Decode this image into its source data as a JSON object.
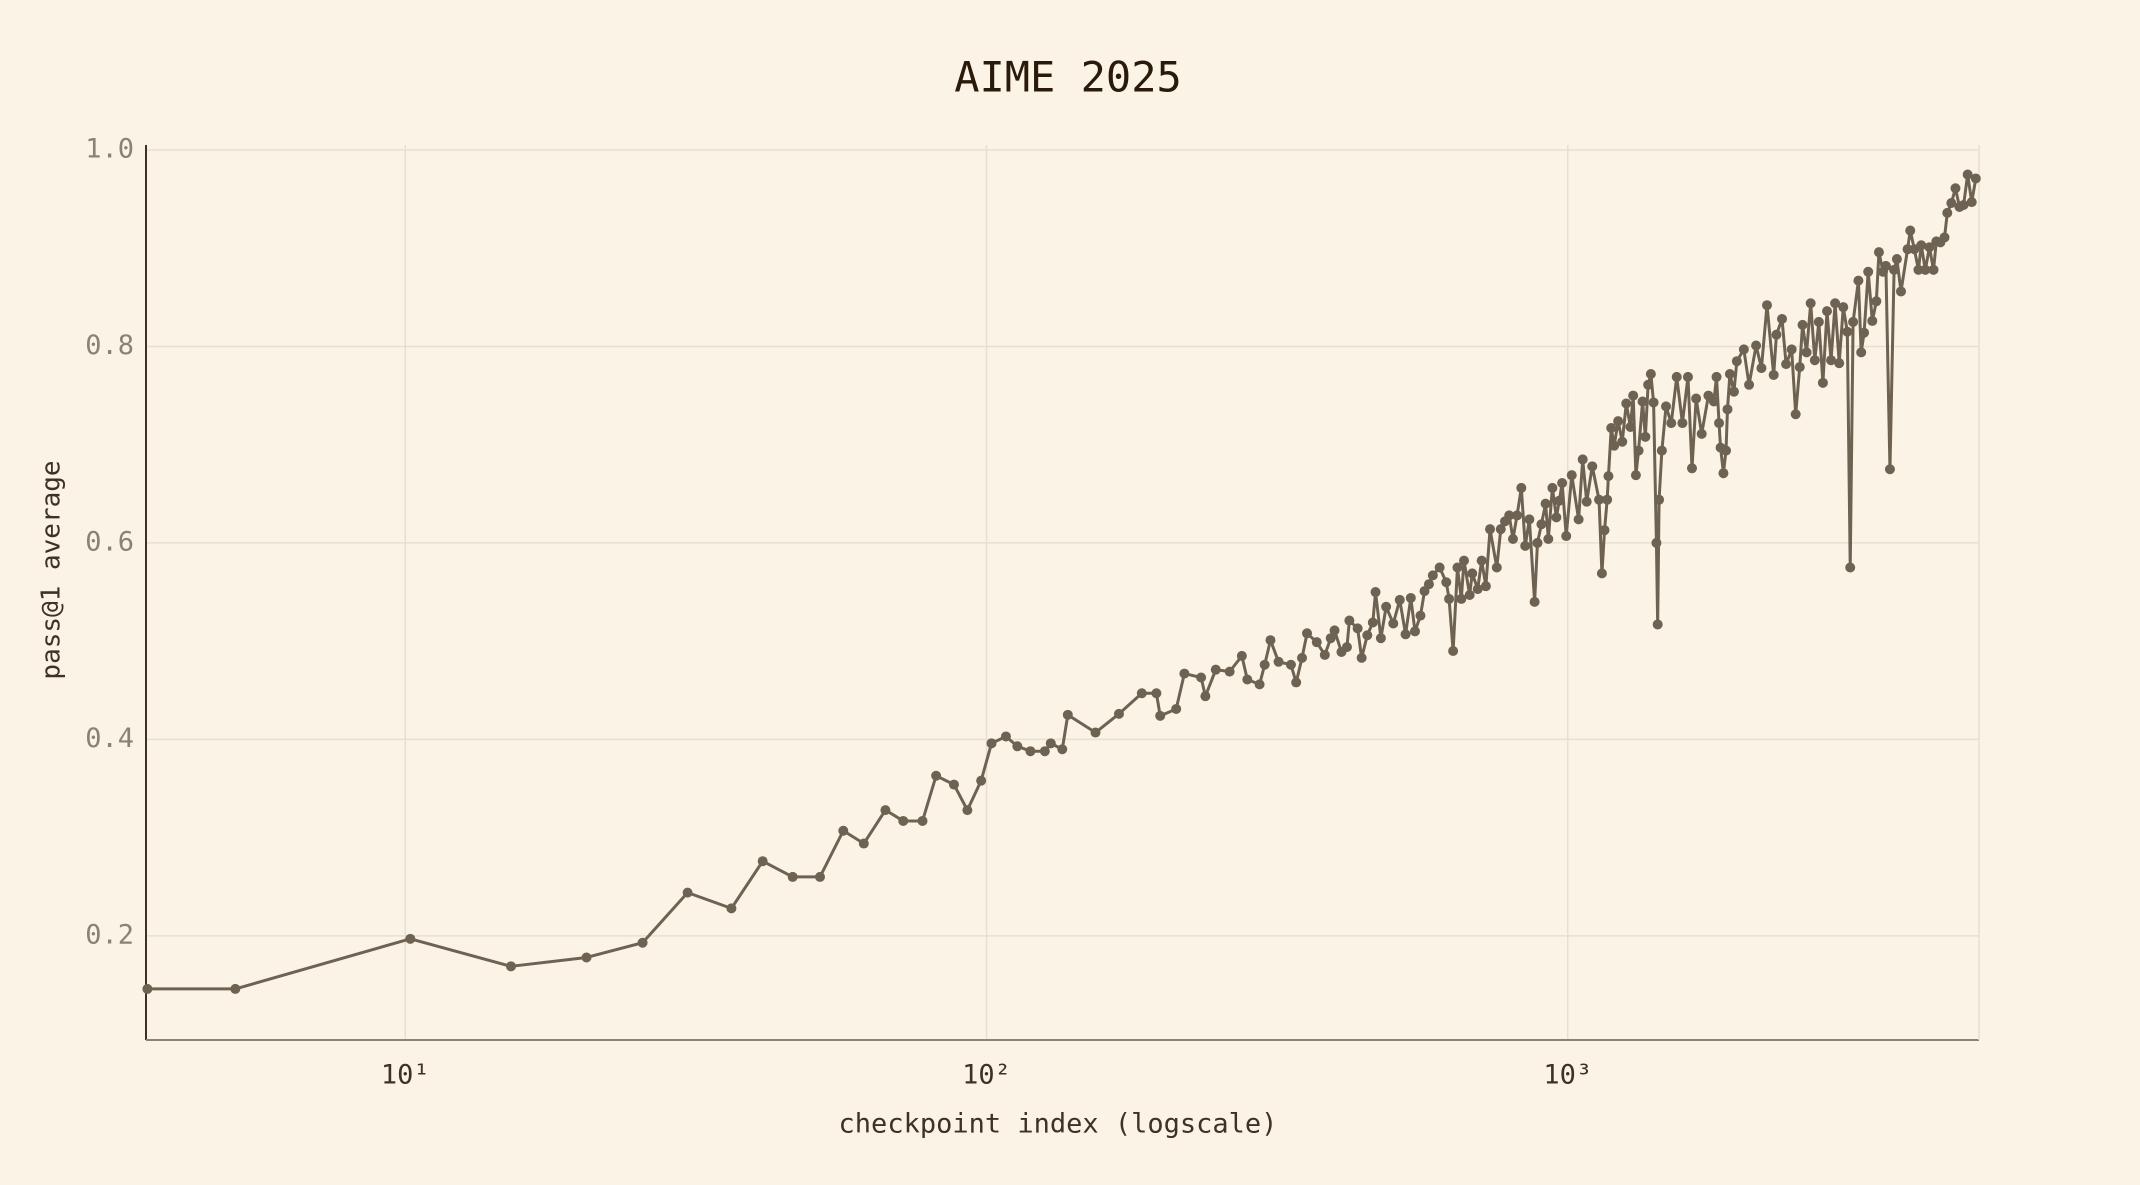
{
  "chart_data": {
    "type": "line",
    "title": "AIME 2025",
    "x_label": "checkpoint index (logscale)",
    "y_label": "pass@1 average",
    "xscale": "log",
    "grid": true,
    "color": "#6e6353",
    "xlim": [
      3.58,
      5100
    ],
    "ylim": [
      0.094,
      1.0
    ],
    "xticks": [
      {
        "value": 10,
        "label": "10¹"
      },
      {
        "value": 100,
        "label": "10²"
      },
      {
        "value": 1000,
        "label": "10³"
      }
    ],
    "yticks": [
      0.2,
      0.4,
      0.6,
      0.8,
      {
        "value": 1,
        "label": "1.0"
      }
    ],
    "x": [
      3.6,
      5.1,
      10.2,
      15.2,
      20.5,
      25.6,
      30.6,
      36.4,
      41.2,
      46.4,
      51.7,
      56.7,
      61.5,
      67,
      71.9,
      77.6,
      81.9,
      87.9,
      92.7,
      97.9,
      102,
      108,
      113,
      119,
      126,
      129,
      135,
      138,
      154,
      169,
      185,
      196,
      199,
      212,
      219,
      234,
      238,
      248,
      262,
      275,
      281,
      295,
      301,
      308,
      318,
      334,
      341,
      349,
      356,
      370,
      382,
      391,
      397,
      408,
      417,
      421,
      435,
      442,
      452,
      462,
      467,
      477,
      487,
      501,
      514,
      526,
      537,
      546,
      558,
      567,
      577,
      586,
      602,
      618,
      625,
      635,
      646,
      656,
      663,
      678,
      685,
      700,
      711,
      723,
      735,
      755,
      767,
      780,
      793,
      805,
      818,
      832,
      845,
      859,
      877,
      887,
      901,
      916,
      926,
      941,
      956,
      967,
      978,
      994,
      1016,
      1044,
      1061,
      1078,
      1102,
      1132,
      1145,
      1157,
      1169,
      1175,
      1188,
      1202,
      1221,
      1241,
      1261,
      1282,
      1296,
      1310,
      1324,
      1345,
      1360,
      1375,
      1390,
      1405,
      1421,
      1428,
      1436,
      1452,
      1476,
      1507,
      1540,
      1575,
      1610,
      1636,
      1663,
      1700,
      1746,
      1784,
      1803,
      1821,
      1832,
      1853,
      1872,
      1883,
      1901,
      1932,
      1954,
      2009,
      2051,
      2109,
      2154,
      2202,
      2261,
      2286,
      2337,
      2375,
      2428,
      2467,
      2507,
      2535,
      2576,
      2618,
      2661,
      2704,
      2748,
      2793,
      2838,
      2884,
      2931,
      2979,
      3027,
      3062,
      3097,
      3163,
      3198,
      3235,
      3288,
      3342,
      3396,
      3431,
      3487,
      3527,
      3584,
      3643,
      3684,
      3744,
      3843,
      3884,
      3948,
      4012,
      4057,
      4123,
      4191,
      4259,
      4307,
      4377,
      4449,
      4498,
      4571,
      4646,
      4721,
      4798,
      4876,
      4955,
      5036
    ],
    "values": [
      0.146,
      0.146,
      0.197,
      0.169,
      0.178,
      0.193,
      0.244,
      0.228,
      0.276,
      0.26,
      0.26,
      0.307,
      0.294,
      0.328,
      0.317,
      0.317,
      0.363,
      0.354,
      0.328,
      0.358,
      0.396,
      0.403,
      0.393,
      0.388,
      0.388,
      0.396,
      0.39,
      0.425,
      0.407,
      0.426,
      0.447,
      0.447,
      0.424,
      0.431,
      0.467,
      0.463,
      0.444,
      0.471,
      0.469,
      0.485,
      0.461,
      0.456,
      0.476,
      0.501,
      0.479,
      0.476,
      0.458,
      0.483,
      0.508,
      0.499,
      0.486,
      0.503,
      0.511,
      0.489,
      0.494,
      0.521,
      0.513,
      0.483,
      0.506,
      0.519,
      0.55,
      0.503,
      0.535,
      0.518,
      0.542,
      0.507,
      0.544,
      0.51,
      0.526,
      0.551,
      0.558,
      0.567,
      0.575,
      0.56,
      0.543,
      0.49,
      0.575,
      0.543,
      0.582,
      0.547,
      0.569,
      0.553,
      0.582,
      0.556,
      0.614,
      0.575,
      0.614,
      0.622,
      0.628,
      0.604,
      0.628,
      0.656,
      0.597,
      0.624,
      0.54,
      0.6,
      0.619,
      0.64,
      0.604,
      0.656,
      0.626,
      0.643,
      0.661,
      0.607,
      0.669,
      0.624,
      0.685,
      0.642,
      0.678,
      0.644,
      0.569,
      0.613,
      0.644,
      0.668,
      0.717,
      0.699,
      0.724,
      0.703,
      0.742,
      0.718,
      0.75,
      0.669,
      0.694,
      0.744,
      0.708,
      0.761,
      0.772,
      0.743,
      0.6,
      0.517,
      0.644,
      0.694,
      0.739,
      0.722,
      0.769,
      0.722,
      0.769,
      0.676,
      0.747,
      0.711,
      0.75,
      0.744,
      0.769,
      0.722,
      0.697,
      0.671,
      0.694,
      0.736,
      0.772,
      0.754,
      0.785,
      0.797,
      0.761,
      0.801,
      0.778,
      0.842,
      0.771,
      0.812,
      0.828,
      0.782,
      0.797,
      0.731,
      0.779,
      0.822,
      0.794,
      0.844,
      0.786,
      0.825,
      0.763,
      0.836,
      0.786,
      0.844,
      0.783,
      0.84,
      0.815,
      0.575,
      0.825,
      0.867,
      0.794,
      0.814,
      0.876,
      0.826,
      0.846,
      0.896,
      0.876,
      0.882,
      0.675,
      0.878,
      0.889,
      0.856,
      0.899,
      0.918,
      0.899,
      0.878,
      0.903,
      0.878,
      0.901,
      0.878,
      0.907,
      0.906,
      0.911,
      0.936,
      0.946,
      0.961,
      0.942,
      0.944,
      0.975,
      0.947,
      0.971
    ]
  }
}
